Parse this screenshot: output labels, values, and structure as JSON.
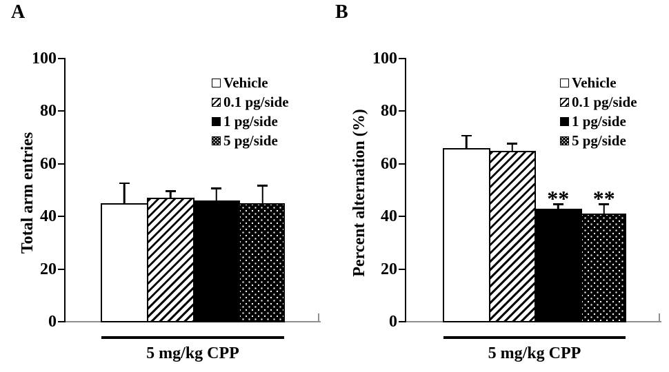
{
  "figure_type": "two-panel scientific bar figure",
  "colors": {
    "background": "#ffffff",
    "text": "#000000",
    "bar_outline": "#000000",
    "value_axis": "#000000",
    "category_axis_gray": "#8f8f8f",
    "bar_fill_black": "#000000",
    "bar_fill_white": "#ffffff"
  },
  "chart_data": [
    {
      "panel_label": "A",
      "type": "bar",
      "title": "",
      "xlabel": "",
      "ylabel": "Total arm entries",
      "group_label": "5 mg/kg CPP",
      "ylim": [
        0,
        100
      ],
      "yticks": [
        0,
        20,
        40,
        60,
        80,
        100
      ],
      "grid": false,
      "categories": [
        "Vehicle",
        "0.1 pg/side",
        "1 pg/side",
        "5 pg/side"
      ],
      "values": [
        45,
        47,
        46,
        45
      ],
      "errors_upper": [
        8,
        3,
        5,
        7
      ],
      "significance": [
        "",
        "",
        "",
        ""
      ],
      "bar_patterns": [
        "white",
        "hatch",
        "black",
        "dots"
      ],
      "legend": {
        "position": "upper-right",
        "entries": [
          "Vehicle",
          "0.1 pg/side",
          "1 pg/side",
          "5 pg/side"
        ]
      }
    },
    {
      "panel_label": "B",
      "type": "bar",
      "title": "",
      "xlabel": "",
      "ylabel": "Percent alternation (%)",
      "group_label": "5 mg/kg CPP",
      "ylim": [
        0,
        100
      ],
      "yticks": [
        0,
        20,
        40,
        60,
        80,
        100
      ],
      "grid": false,
      "categories": [
        "Vehicle",
        "0.1 pg/side",
        "1 pg/side",
        "5 pg/side"
      ],
      "values": [
        66,
        65,
        43,
        41
      ],
      "errors_upper": [
        5,
        3,
        2,
        4
      ],
      "significance": [
        "",
        "",
        "**",
        "**"
      ],
      "bar_patterns": [
        "white",
        "hatch",
        "black",
        "dots"
      ],
      "legend": {
        "position": "upper-right",
        "entries": [
          "Vehicle",
          "0.1 pg/side",
          "1 pg/side",
          "5 pg/side"
        ]
      }
    }
  ]
}
